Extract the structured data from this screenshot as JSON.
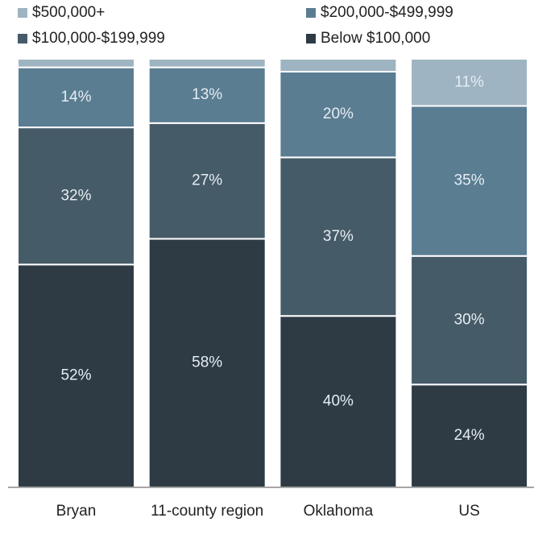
{
  "chart_data": {
    "type": "stacked_bar",
    "categories": [
      "Bryan",
      "11-county region",
      "Oklahoma",
      "US"
    ],
    "ylim": [
      0,
      100
    ],
    "series": [
      {
        "name": "Below $100,000",
        "color": "#2e3b45",
        "values": [
          52,
          58,
          40,
          24
        ],
        "value_labels": [
          "52%",
          "58%",
          "40%",
          "24%"
        ]
      },
      {
        "name": "$100,000-$199,999",
        "color": "#465b68",
        "values": [
          32,
          27,
          37,
          30
        ],
        "value_labels": [
          "32%",
          "27%",
          "37%",
          "30%"
        ]
      },
      {
        "name": "$200,000-$499,999",
        "color": "#5a7d92",
        "values": [
          14,
          13,
          20,
          35
        ],
        "value_labels": [
          "14%",
          "13%",
          "20%",
          "35%"
        ]
      },
      {
        "name": "$500,000+",
        "color": "#9fb4c2",
        "values": [
          2,
          2,
          3,
          11
        ],
        "value_labels": [
          null,
          null,
          null,
          "11%"
        ]
      }
    ]
  }
}
